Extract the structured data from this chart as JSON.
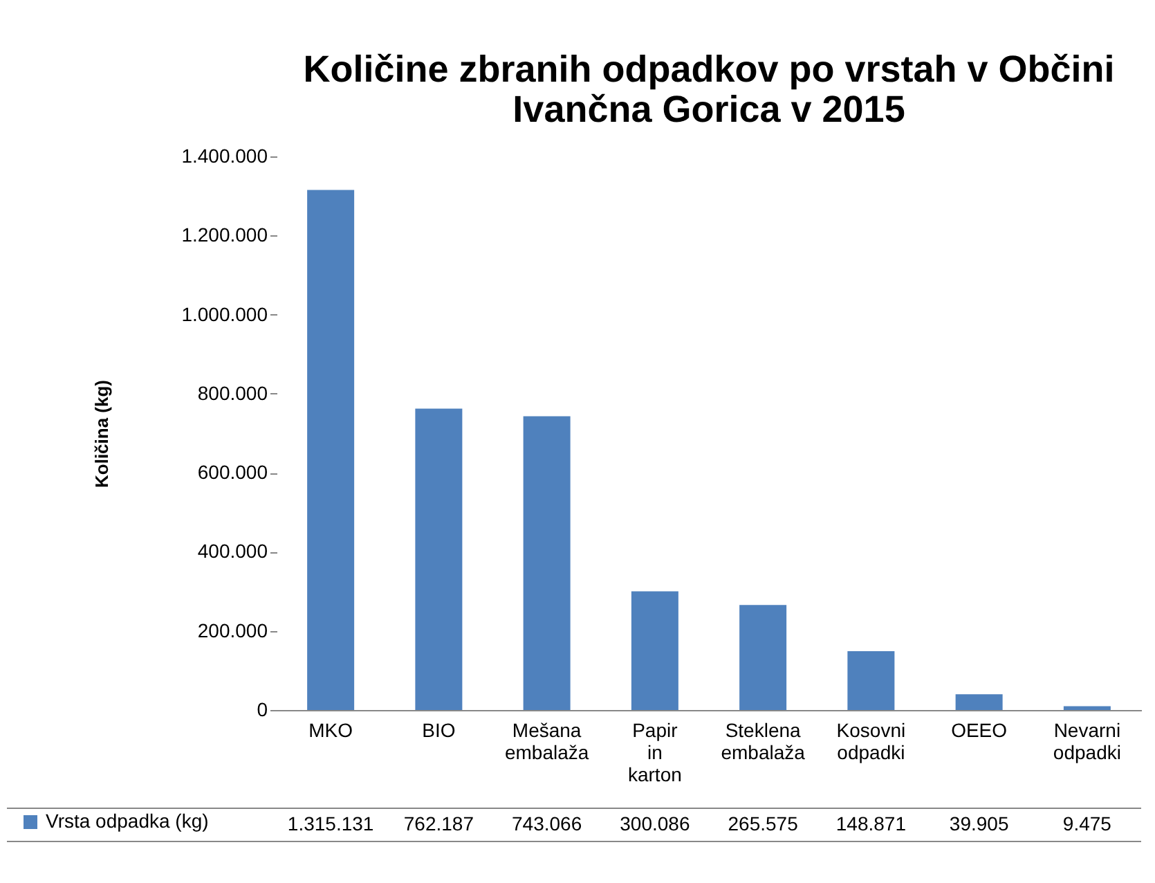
{
  "chart_data": {
    "type": "bar",
    "title": "Količine zbranih odpadkov po vrstah v Občini\nIvančna Gorica v 2015",
    "ylabel": "Količina (kg)",
    "categories": [
      "MKO",
      "BIO",
      "Mešana embalaža",
      "Papir in karton",
      "Steklena embalaža",
      "Kosovni odpadki",
      "OEEO",
      "Nevarni odpadki"
    ],
    "series": [
      {
        "name": "Vrsta odpadka (kg)",
        "color": "#4f81bd",
        "values": [
          1315131,
          762187,
          743066,
          300086,
          265575,
          148871,
          39905,
          9475
        ],
        "value_labels": [
          "1.315.131",
          "762.187",
          "743.066",
          "300.086",
          "265.575",
          "148.871",
          "39.905",
          "9.475"
        ]
      }
    ],
    "ylim": [
      0,
      1400000
    ],
    "yticks": [
      0,
      {
        "value": 200000,
        "label": "200.000"
      },
      {
        "value": 400000,
        "label": "400.000"
      },
      {
        "value": 600000,
        "label": "600.000"
      },
      {
        "value": 800000,
        "label": "800.000"
      },
      {
        "value": 1000000,
        "label": "1.000.000"
      },
      {
        "value": 1200000,
        "label": "1.200.000"
      },
      {
        "value": 1400000,
        "label": "1.400.000"
      }
    ],
    "grid": false,
    "legend": "bottom left"
  }
}
